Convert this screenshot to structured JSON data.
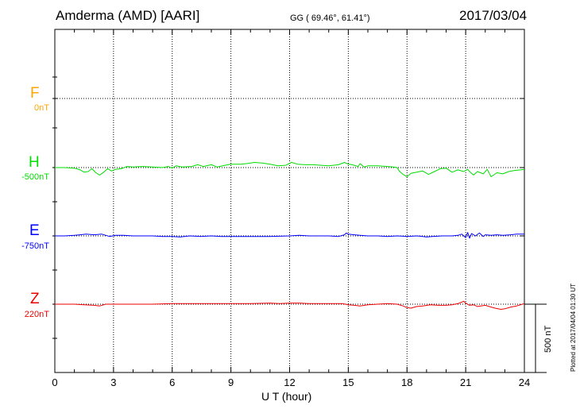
{
  "header": {
    "station": "Amderma (AMD)  [AARI]",
    "coords": "GG ( 69.46°,  61.41°)",
    "date": "2017/03/04"
  },
  "side_note": "Plotted at 2017/04/04 01:30 UT",
  "chart_data": {
    "type": "line",
    "xlabel": "U T (hour)",
    "xlim": [
      0,
      24
    ],
    "x_ticks": [
      "0",
      "3",
      "6",
      "9",
      "12",
      "15",
      "18",
      "21",
      "24"
    ],
    "scale_bar_label": "500 nT",
    "grid": true,
    "series": [
      {
        "name": "F",
        "baseline_label": "0nT",
        "color": "#ffa500",
        "points": []
      },
      {
        "name": "H",
        "baseline_label": "-500nT",
        "color": "#00dd00",
        "points": [
          [
            0,
            0
          ],
          [
            0.5,
            0
          ],
          [
            1.0,
            -5
          ],
          [
            1.3,
            -20
          ],
          [
            1.5,
            -40
          ],
          [
            1.7,
            -35
          ],
          [
            1.9,
            -10
          ],
          [
            2.1,
            -45
          ],
          [
            2.3,
            -65
          ],
          [
            2.5,
            -40
          ],
          [
            2.7,
            -10
          ],
          [
            2.9,
            -30
          ],
          [
            3.1,
            -15
          ],
          [
            3.4,
            -10
          ],
          [
            3.7,
            10
          ],
          [
            4.0,
            5
          ],
          [
            4.5,
            10
          ],
          [
            5.0,
            5
          ],
          [
            5.5,
            0
          ],
          [
            5.8,
            10
          ],
          [
            6.0,
            -5
          ],
          [
            6.2,
            15
          ],
          [
            6.5,
            5
          ],
          [
            7.0,
            10
          ],
          [
            7.3,
            25
          ],
          [
            7.6,
            10
          ],
          [
            8.0,
            25
          ],
          [
            8.3,
            5
          ],
          [
            8.7,
            20
          ],
          [
            9.0,
            30
          ],
          [
            9.5,
            30
          ],
          [
            9.8,
            35
          ],
          [
            10.2,
            45
          ],
          [
            10.6,
            40
          ],
          [
            11.0,
            30
          ],
          [
            11.4,
            15
          ],
          [
            11.8,
            20
          ],
          [
            12.1,
            45
          ],
          [
            12.4,
            30
          ],
          [
            12.8,
            25
          ],
          [
            13.2,
            25
          ],
          [
            13.6,
            20
          ],
          [
            14.0,
            15
          ],
          [
            14.5,
            25
          ],
          [
            14.8,
            45
          ],
          [
            15.0,
            30
          ],
          [
            15.2,
            25
          ],
          [
            15.5,
            10
          ],
          [
            15.6,
            35
          ],
          [
            15.8,
            5
          ],
          [
            16.0,
            15
          ],
          [
            16.5,
            15
          ],
          [
            17.0,
            10
          ],
          [
            17.3,
            5
          ],
          [
            17.5,
            0
          ],
          [
            17.6,
            -30
          ],
          [
            17.8,
            -60
          ],
          [
            18.0,
            -80
          ],
          [
            18.2,
            -50
          ],
          [
            18.5,
            -40
          ],
          [
            18.8,
            -30
          ],
          [
            19.1,
            -60
          ],
          [
            19.4,
            -35
          ],
          [
            19.7,
            -10
          ],
          [
            20.0,
            -5
          ],
          [
            20.3,
            -40
          ],
          [
            20.6,
            -20
          ],
          [
            20.9,
            -35
          ],
          [
            21.1,
            -15
          ],
          [
            21.2,
            -35
          ],
          [
            21.4,
            -65
          ],
          [
            21.6,
            -35
          ],
          [
            21.9,
            -55
          ],
          [
            22.1,
            -15
          ],
          [
            22.3,
            -80
          ],
          [
            22.6,
            -45
          ],
          [
            22.9,
            -55
          ],
          [
            23.2,
            -35
          ],
          [
            23.5,
            -25
          ],
          [
            23.8,
            -20
          ],
          [
            24.0,
            -15
          ]
        ]
      },
      {
        "name": "E",
        "baseline_label": "-750nT",
        "color": "#0000ff",
        "points": [
          [
            0,
            0
          ],
          [
            0.5,
            0
          ],
          [
            1.0,
            5
          ],
          [
            1.3,
            10
          ],
          [
            1.6,
            15
          ],
          [
            2.0,
            10
          ],
          [
            2.4,
            15
          ],
          [
            2.8,
            -5
          ],
          [
            3.1,
            5
          ],
          [
            3.5,
            5
          ],
          [
            4.0,
            0
          ],
          [
            5.0,
            0
          ],
          [
            5.5,
            -5
          ],
          [
            6.0,
            -5
          ],
          [
            6.4,
            -10
          ],
          [
            6.9,
            0
          ],
          [
            7.5,
            -5
          ],
          [
            8.0,
            0
          ],
          [
            8.5,
            -5
          ],
          [
            9.0,
            -5
          ],
          [
            9.5,
            -5
          ],
          [
            10.0,
            -5
          ],
          [
            11.0,
            -5
          ],
          [
            12.0,
            0
          ],
          [
            12.5,
            5
          ],
          [
            13.0,
            0
          ],
          [
            13.5,
            0
          ],
          [
            14.0,
            0
          ],
          [
            14.5,
            -5
          ],
          [
            14.8,
            10
          ],
          [
            14.9,
            25
          ],
          [
            15.0,
            15
          ],
          [
            15.3,
            10
          ],
          [
            15.6,
            5
          ],
          [
            16.0,
            0
          ],
          [
            16.5,
            0
          ],
          [
            17.0,
            -5
          ],
          [
            17.5,
            0
          ],
          [
            18.0,
            -5
          ],
          [
            18.5,
            0
          ],
          [
            18.8,
            -5
          ],
          [
            19.0,
            -10
          ],
          [
            19.3,
            -5
          ],
          [
            19.8,
            0
          ],
          [
            20.3,
            0
          ],
          [
            20.6,
            5
          ],
          [
            20.8,
            15
          ],
          [
            21.0,
            -15
          ],
          [
            21.1,
            30
          ],
          [
            21.2,
            -20
          ],
          [
            21.3,
            20
          ],
          [
            21.5,
            0
          ],
          [
            21.7,
            25
          ],
          [
            21.9,
            -5
          ],
          [
            22.0,
            10
          ],
          [
            22.3,
            5
          ],
          [
            22.6,
            10
          ],
          [
            22.9,
            5
          ],
          [
            23.3,
            10
          ],
          [
            23.6,
            15
          ],
          [
            23.9,
            15
          ],
          [
            24.0,
            15
          ]
        ]
      },
      {
        "name": "Z",
        "baseline_label": "220nT",
        "color": "#ee0000",
        "points": [
          [
            0,
            0
          ],
          [
            1.0,
            0
          ],
          [
            1.5,
            -5
          ],
          [
            2.0,
            -10
          ],
          [
            2.3,
            -15
          ],
          [
            2.6,
            0
          ],
          [
            3.0,
            0
          ],
          [
            3.5,
            0
          ],
          [
            4.0,
            0
          ],
          [
            5.0,
            0
          ],
          [
            6.0,
            5
          ],
          [
            7.0,
            5
          ],
          [
            8.0,
            5
          ],
          [
            9.0,
            5
          ],
          [
            10.0,
            5
          ],
          [
            11.0,
            10
          ],
          [
            11.5,
            5
          ],
          [
            12.0,
            10
          ],
          [
            12.5,
            10
          ],
          [
            13.0,
            5
          ],
          [
            14.0,
            5
          ],
          [
            14.7,
            5
          ],
          [
            15.0,
            -5
          ],
          [
            15.3,
            -10
          ],
          [
            15.6,
            -15
          ],
          [
            16.0,
            -5
          ],
          [
            16.5,
            0
          ],
          [
            17.0,
            5
          ],
          [
            17.5,
            0
          ],
          [
            17.8,
            -15
          ],
          [
            18.0,
            -30
          ],
          [
            18.2,
            -35
          ],
          [
            18.5,
            -20
          ],
          [
            18.8,
            -15
          ],
          [
            19.2,
            -5
          ],
          [
            19.6,
            -10
          ],
          [
            20.0,
            -10
          ],
          [
            20.3,
            -5
          ],
          [
            20.6,
            5
          ],
          [
            20.9,
            25
          ],
          [
            21.0,
            10
          ],
          [
            21.2,
            -10
          ],
          [
            21.4,
            -5
          ],
          [
            21.6,
            -20
          ],
          [
            22.0,
            -10
          ],
          [
            22.3,
            -25
          ],
          [
            22.5,
            -35
          ],
          [
            22.8,
            -45
          ],
          [
            23.0,
            -40
          ],
          [
            23.3,
            -25
          ],
          [
            23.6,
            -15
          ],
          [
            23.9,
            0
          ],
          [
            24.0,
            5
          ]
        ]
      }
    ]
  }
}
